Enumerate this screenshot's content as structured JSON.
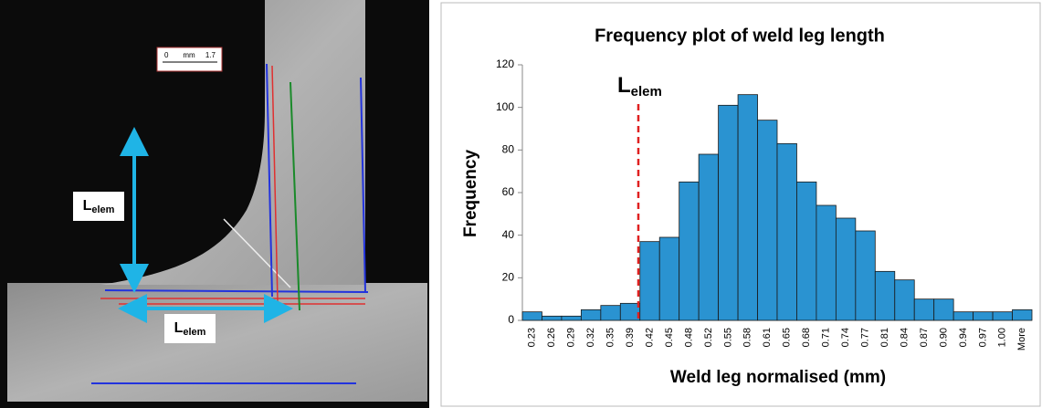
{
  "photo": {
    "scale_bar": {
      "start": "0",
      "unit": "mm",
      "end": "1.7"
    },
    "labels": [
      {
        "main": "L",
        "sub": "elem"
      },
      {
        "main": "L",
        "sub": "elem"
      }
    ]
  },
  "chart_data": {
    "type": "bar",
    "title": "Frequency plot of weld leg length",
    "x_label": "Weld leg normalised (mm)",
    "y_label": "Frequency",
    "annotation": {
      "main": "L",
      "sub": "elem"
    },
    "categories": [
      "0.23",
      "0.26",
      "0.29",
      "0.32",
      "0.35",
      "0.39",
      "0.42",
      "0.45",
      "0.48",
      "0.52",
      "0.55",
      "0.58",
      "0.61",
      "0.65",
      "0.68",
      "0.71",
      "0.74",
      "0.77",
      "0.81",
      "0.84",
      "0.87",
      "0.90",
      "0.94",
      "0.97",
      "1.00",
      "More"
    ],
    "values": [
      4,
      2,
      2,
      5,
      7,
      8,
      37,
      39,
      65,
      78,
      101,
      106,
      94,
      83,
      65,
      54,
      48,
      42,
      23,
      19,
      10,
      10,
      4,
      4,
      4,
      5
    ],
    "color": "#2a93d1",
    "ylim": [
      0,
      120
    ],
    "yticks": [
      0,
      20,
      40,
      60,
      80,
      100,
      120
    ],
    "grid": false
  }
}
